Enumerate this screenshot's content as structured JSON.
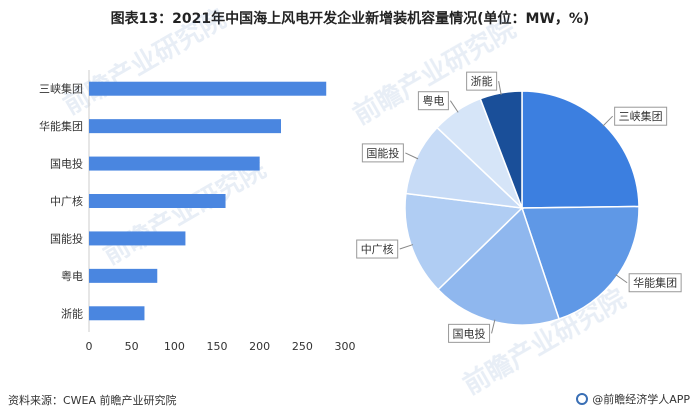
{
  "title": "图表13：2021年中国海上风电开发企业新增装机容量情况(单位：MW，%)",
  "source": "资料来源：CWEA 前瞻产业研究院",
  "brand": "@前瞻经济学人APP",
  "watermark": "前瞻产业研究院",
  "colors": {
    "bar": "#4a86e0",
    "pie": [
      "#3c7fe0",
      "#5f98e6",
      "#8fb7ee",
      "#b0cdf3",
      "#c7dbf6",
      "#d6e5f8",
      "#1a4f99"
    ],
    "pie_stroke": "#ffffff",
    "label_box": "#999999"
  },
  "chart_data": [
    {
      "type": "bar",
      "orientation": "horizontal",
      "categories": [
        "三峡集团",
        "华能集团",
        "国电投",
        "中广核",
        "国能投",
        "粤电",
        "浙能"
      ],
      "values": [
        278,
        225,
        200,
        160,
        113,
        80,
        65
      ],
      "xlim": [
        0,
        300
      ],
      "xticks": [
        0,
        50,
        100,
        150,
        200,
        250,
        300
      ],
      "grid": false
    },
    {
      "type": "pie",
      "labels": [
        "三峡集团",
        "华能集团",
        "国电投",
        "中广核",
        "国能投",
        "粤电",
        "浙能"
      ],
      "values": [
        278,
        225,
        200,
        160,
        113,
        80,
        65
      ]
    }
  ]
}
